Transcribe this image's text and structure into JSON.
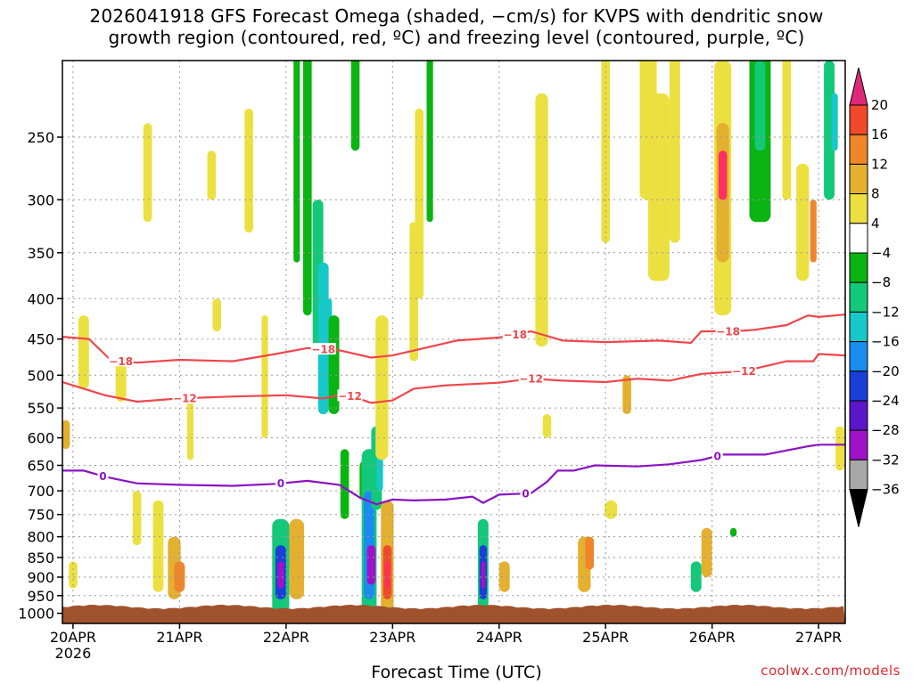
{
  "title": {
    "line1": "2026041918 GFS Forecast Omega (shaded, −cm/s) for KVPS with dendritic snow",
    "line2": "growth region (contoured, red, ºC) and freezing level (contoured, purple, ºC)"
  },
  "credit": "coolwx.com/models",
  "chart_data": {
    "type": "heatmap",
    "title": "2026041918 GFS Forecast Omega (shaded, −cm/s) for KVPS with dendritic snow growth region (contoured, red, ºC) and freezing level (contoured, purple, ºC)",
    "xlabel": "Forecast Time (UTC)",
    "ylabel": "",
    "x_range_days": [
      19.9,
      27.25
    ],
    "x_ticks": [
      {
        "day": 20,
        "label": "20APR",
        "sub": "2026"
      },
      {
        "day": 21,
        "label": "21APR",
        "sub": ""
      },
      {
        "day": 22,
        "label": "22APR",
        "sub": ""
      },
      {
        "day": 23,
        "label": "23APR",
        "sub": ""
      },
      {
        "day": 24,
        "label": "24APR",
        "sub": ""
      },
      {
        "day": 25,
        "label": "25APR",
        "sub": ""
      },
      {
        "day": 26,
        "label": "26APR",
        "sub": ""
      },
      {
        "day": 27,
        "label": "27APR",
        "sub": ""
      }
    ],
    "y_axis": {
      "log": true,
      "top_hpa": 200,
      "bottom_hpa": 1000,
      "reversed": true,
      "ticks": [
        250,
        300,
        350,
        400,
        450,
        500,
        550,
        600,
        650,
        700,
        750,
        800,
        850,
        900,
        950,
        1000
      ]
    },
    "colorbar": {
      "labels": [
        "20",
        "16",
        "12",
        "8",
        "4",
        "−4",
        "−8",
        "−12",
        "−16",
        "−20",
        "−24",
        "−28",
        "−32",
        "−36"
      ],
      "colors": [
        "#ff2f5f",
        "#f04a2a",
        "#f0852a",
        "#e4b030",
        "#ece040",
        "#ffffff",
        "#0ab412",
        "#14c87a",
        "#16c8c8",
        "#1a8cf0",
        "#1a3ed8",
        "#5a16c8",
        "#a012c8",
        "#a8a8a8",
        "#000000"
      ]
    },
    "series": [
      {
        "name": "-18 ºC",
        "color": "#f0454b",
        "label": "−18",
        "points": [
          [
            19.9,
            447
          ],
          [
            20.15,
            450
          ],
          [
            20.35,
            478
          ],
          [
            20.6,
            482
          ],
          [
            21.0,
            478
          ],
          [
            21.5,
            480
          ],
          [
            21.9,
            470
          ],
          [
            22.2,
            462
          ],
          [
            22.5,
            465
          ],
          [
            22.8,
            475
          ],
          [
            23.0,
            472
          ],
          [
            23.3,
            462
          ],
          [
            23.6,
            452
          ],
          [
            24.0,
            448
          ],
          [
            24.3,
            440
          ],
          [
            24.6,
            452
          ],
          [
            25.0,
            454
          ],
          [
            25.5,
            452
          ],
          [
            25.8,
            455
          ],
          [
            25.9,
            440
          ],
          [
            26.2,
            440
          ],
          [
            26.4,
            438
          ],
          [
            26.7,
            432
          ],
          [
            26.9,
            420
          ],
          [
            27.0,
            422
          ],
          [
            27.25,
            419
          ]
        ],
        "labels_at_days": [
          20.45,
          22.35,
          24.15,
          26.15
        ]
      },
      {
        "name": "-12 ºC",
        "color": "#f0454b",
        "label": "−12",
        "points": [
          [
            19.9,
            510
          ],
          [
            20.1,
            520
          ],
          [
            20.3,
            530
          ],
          [
            20.6,
            540
          ],
          [
            21.0,
            535
          ],
          [
            21.5,
            532
          ],
          [
            22.0,
            530
          ],
          [
            22.35,
            535
          ],
          [
            22.55,
            528
          ],
          [
            22.8,
            542
          ],
          [
            23.0,
            538
          ],
          [
            23.2,
            520
          ],
          [
            23.5,
            515
          ],
          [
            24.0,
            511
          ],
          [
            24.3,
            505
          ],
          [
            24.6,
            508
          ],
          [
            25.0,
            510
          ],
          [
            25.3,
            505
          ],
          [
            25.6,
            508
          ],
          [
            25.9,
            498
          ],
          [
            26.3,
            494
          ],
          [
            26.7,
            480
          ],
          [
            26.95,
            480
          ],
          [
            27.0,
            470
          ],
          [
            27.25,
            472
          ]
        ],
        "labels_at_days": [
          21.05,
          22.6,
          24.3,
          26.3
        ]
      },
      {
        "name": "0 ºC (freezing level)",
        "color": "#8b12c4",
        "label": "0",
        "points": [
          [
            19.9,
            660
          ],
          [
            20.1,
            660
          ],
          [
            20.3,
            672
          ],
          [
            20.6,
            685
          ],
          [
            21.0,
            688
          ],
          [
            21.5,
            690
          ],
          [
            21.9,
            686
          ],
          [
            22.2,
            680
          ],
          [
            22.5,
            688
          ],
          [
            22.7,
            715
          ],
          [
            22.85,
            728
          ],
          [
            23.0,
            718
          ],
          [
            23.2,
            720
          ],
          [
            23.5,
            718
          ],
          [
            23.75,
            712
          ],
          [
            23.85,
            725
          ],
          [
            24.0,
            708
          ],
          [
            24.3,
            705
          ],
          [
            24.45,
            682
          ],
          [
            24.55,
            660
          ],
          [
            24.7,
            660
          ],
          [
            24.9,
            650
          ],
          [
            25.3,
            652
          ],
          [
            25.6,
            648
          ],
          [
            25.9,
            640
          ],
          [
            26.1,
            630
          ],
          [
            26.5,
            630
          ],
          [
            26.9,
            615
          ],
          [
            27.0,
            612
          ],
          [
            27.25,
            612
          ]
        ],
        "labels_at_days": [
          20.28,
          21.95,
          24.25,
          26.05
        ]
      }
    ],
    "omega_cells_note": "Shaded omega blobs as (day, top_hpa, bottom_hpa, half_width_day, value cm/s)",
    "omega_cells": [
      [
        19.93,
        570,
        620,
        0.04,
        6
      ],
      [
        20.1,
        420,
        520,
        0.05,
        4
      ],
      [
        20.45,
        480,
        540,
        0.05,
        4
      ],
      [
        20.7,
        240,
        320,
        0.04,
        4
      ],
      [
        20.8,
        720,
        940,
        0.05,
        4
      ],
      [
        20.95,
        800,
        960,
        0.06,
        6
      ],
      [
        21.3,
        260,
        300,
        0.04,
        4
      ],
      [
        21.65,
        230,
        330,
        0.04,
        4
      ],
      [
        21.8,
        420,
        600,
        0.03,
        4
      ],
      [
        22.0,
        780,
        880,
        0.05,
        6
      ],
      [
        22.1,
        760,
        960,
        0.07,
        8
      ],
      [
        21.95,
        760,
        1000,
        0.08,
        -10
      ],
      [
        21.95,
        820,
        960,
        0.05,
        -24
      ],
      [
        21.95,
        860,
        930,
        0.03,
        -30
      ],
      [
        22.1,
        180,
        360,
        0.03,
        -8
      ],
      [
        22.2,
        180,
        420,
        0.04,
        -6
      ],
      [
        22.3,
        300,
        460,
        0.05,
        -10
      ],
      [
        22.35,
        360,
        560,
        0.05,
        -14
      ],
      [
        22.4,
        400,
        520,
        0.03,
        -16
      ],
      [
        22.45,
        420,
        560,
        0.05,
        -6
      ],
      [
        22.55,
        620,
        760,
        0.04,
        -8
      ],
      [
        22.65,
        180,
        260,
        0.04,
        -6
      ],
      [
        22.75,
        640,
        720,
        0.06,
        -8
      ],
      [
        22.78,
        620,
        1000,
        0.07,
        -10
      ],
      [
        22.78,
        700,
        960,
        0.05,
        -18
      ],
      [
        22.8,
        820,
        920,
        0.04,
        -30
      ],
      [
        22.85,
        580,
        740,
        0.05,
        -10
      ],
      [
        22.88,
        600,
        700,
        0.03,
        -16
      ],
      [
        22.95,
        720,
        1000,
        0.06,
        8
      ],
      [
        22.95,
        820,
        960,
        0.04,
        16
      ],
      [
        22.95,
        860,
        930,
        0.02,
        20
      ],
      [
        22.9,
        420,
        640,
        0.06,
        4
      ],
      [
        23.2,
        320,
        480,
        0.04,
        4
      ],
      [
        23.25,
        230,
        400,
        0.04,
        4
      ],
      [
        23.35,
        180,
        320,
        0.03,
        -6
      ],
      [
        23.85,
        760,
        1000,
        0.05,
        -10
      ],
      [
        23.85,
        820,
        960,
        0.035,
        -24
      ],
      [
        23.85,
        860,
        930,
        0.02,
        -30
      ],
      [
        24.05,
        860,
        940,
        0.05,
        6
      ],
      [
        24.4,
        220,
        460,
        0.06,
        4
      ],
      [
        24.45,
        560,
        600,
        0.04,
        4
      ],
      [
        24.8,
        800,
        940,
        0.06,
        6
      ],
      [
        24.85,
        800,
        880,
        0.04,
        10
      ],
      [
        25.0,
        180,
        340,
        0.04,
        4
      ],
      [
        25.05,
        720,
        760,
        0.06,
        4
      ],
      [
        25.2,
        500,
        560,
        0.04,
        6
      ],
      [
        25.4,
        180,
        300,
        0.08,
        4
      ],
      [
        25.5,
        220,
        380,
        0.1,
        4
      ],
      [
        25.65,
        180,
        340,
        0.05,
        4
      ],
      [
        25.85,
        860,
        940,
        0.05,
        -10
      ],
      [
        25.95,
        780,
        900,
        0.05,
        6
      ],
      [
        26.1,
        200,
        420,
        0.08,
        4
      ],
      [
        26.1,
        240,
        360,
        0.06,
        8
      ],
      [
        26.1,
        260,
        300,
        0.04,
        18
      ],
      [
        26.2,
        780,
        800,
        0.03,
        -8
      ],
      [
        26.45,
        180,
        320,
        0.1,
        -8
      ],
      [
        26.45,
        200,
        260,
        0.05,
        -10
      ],
      [
        26.7,
        180,
        300,
        0.04,
        4
      ],
      [
        26.85,
        270,
        380,
        0.06,
        4
      ],
      [
        26.95,
        300,
        360,
        0.03,
        10
      ],
      [
        27.1,
        200,
        300,
        0.05,
        -10
      ],
      [
        27.15,
        220,
        260,
        0.03,
        -14
      ],
      [
        27.2,
        580,
        660,
        0.04,
        4
      ],
      [
        20.0,
        860,
        930,
        0.04,
        4
      ],
      [
        20.6,
        700,
        820,
        0.04,
        4
      ],
      [
        21.0,
        860,
        940,
        0.05,
        10
      ],
      [
        21.1,
        540,
        640,
        0.03,
        4
      ],
      [
        21.35,
        400,
        440,
        0.04,
        4
      ]
    ]
  }
}
